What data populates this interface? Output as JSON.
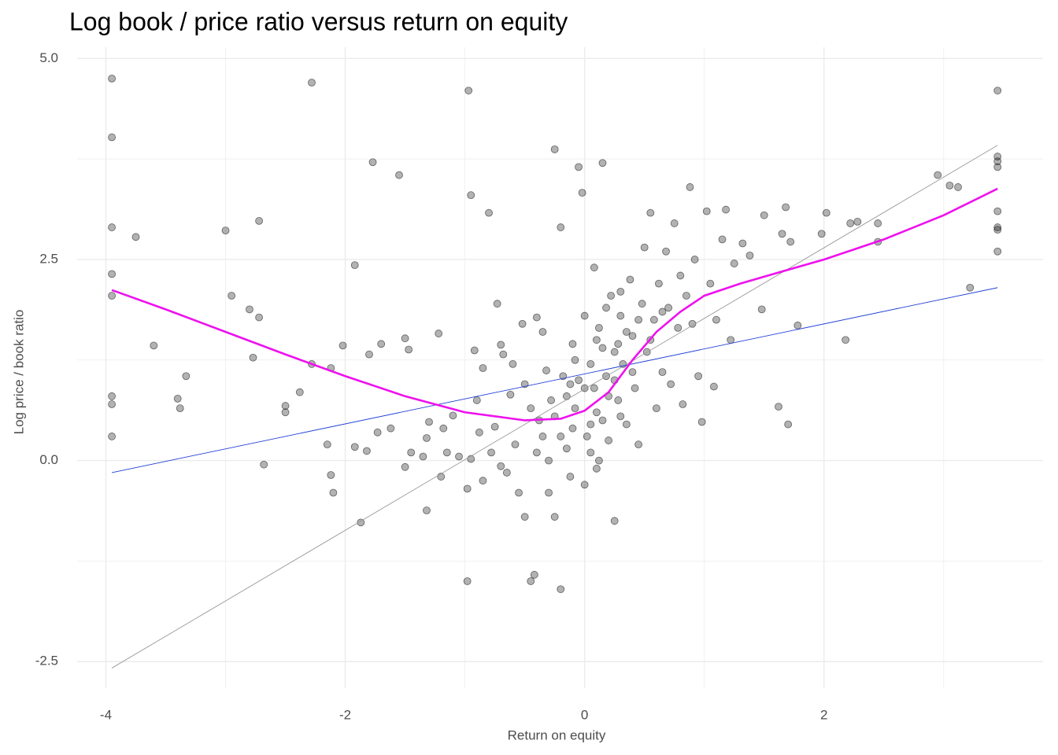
{
  "chart_data": {
    "type": "scatter",
    "title": "Log book / price ratio versus return on equity",
    "x_label": "Return on equity",
    "y_label": "Log price / book ratio",
    "xlim": [
      -4.24,
      3.83
    ],
    "ylim": [
      -2.83,
      5.14
    ],
    "xticks": [
      -4,
      -2,
      0,
      2
    ],
    "yticks": [
      {
        "value": -2.5,
        "label": "-2.5"
      },
      {
        "value": 0,
        "label": "0.0"
      },
      {
        "value": 2.5,
        "label": "2.5"
      },
      {
        "value": 5,
        "label": "5.0"
      }
    ],
    "x_minor_grid": [
      -3,
      -1,
      1,
      3
    ],
    "y_minor_grid": [
      -1.25,
      1.25,
      3.75
    ],
    "grid": true,
    "point_color": "#000000",
    "x": [
      -3.95,
      -3.95,
      -3.95,
      -3.95,
      -3.95,
      -3.95,
      -3.95,
      -3.95,
      -3.75,
      -3.6,
      -3.4,
      -3.38,
      -3.33,
      -3.0,
      -2.95,
      -2.8,
      -2.77,
      -2.72,
      -2.72,
      -2.68,
      -2.5,
      -2.5,
      -2.38,
      -2.28,
      -2.28,
      -2.12,
      -2.02,
      -2.15,
      -2.12,
      -2.1,
      -1.92,
      -1.92,
      -1.87,
      -1.82,
      -1.8,
      -1.77,
      -1.73,
      -1.7,
      -1.62,
      -1.55,
      -1.5,
      -1.5,
      -1.47,
      -1.45,
      -1.35,
      -1.3,
      -1.32,
      -1.32,
      -1.22,
      -1.2,
      -1.18,
      -1.15,
      -1.1,
      -1.05,
      -0.98,
      -0.98,
      -0.97,
      -0.95,
      -0.95,
      -0.92,
      -0.9,
      -0.88,
      -0.85,
      -0.85,
      -0.8,
      -0.78,
      -0.75,
      -0.73,
      -0.7,
      -0.7,
      -0.68,
      -0.65,
      -0.62,
      -0.6,
      -0.58,
      -0.55,
      -0.52,
      -0.5,
      -0.5,
      -0.45,
      -0.45,
      -0.42,
      -0.4,
      -0.38,
      -0.35,
      -0.32,
      -0.3,
      -0.28,
      -0.25,
      -0.25,
      -0.2,
      -0.2,
      -0.18,
      -0.15,
      -0.12,
      -0.1,
      -0.08,
      -0.05,
      -0.02,
      0,
      0.02,
      0.05,
      0.08,
      0.1,
      0.12,
      0.15,
      0.15,
      0.18,
      0.2,
      0.22,
      0.25,
      0.25,
      0.28,
      0.3,
      0.32,
      0.35,
      0.38,
      0.4,
      0.42,
      0.45,
      0.48,
      0.5,
      0.52,
      0.55,
      0.58,
      0.6,
      0.62,
      0.65,
      0.68,
      0.7,
      0.72,
      0.75,
      0.78,
      0.8,
      0.82,
      0.85,
      0.88,
      0.9,
      0.92,
      0.95,
      0.98,
      1.02,
      1.05,
      1.08,
      1.1,
      1.15,
      1.18,
      1.22,
      1.25,
      1.32,
      1.38,
      1.48,
      1.5,
      1.62,
      1.65,
      1.68,
      1.7,
      1.72,
      1.78,
      1.98,
      2.02,
      2.18,
      2.22,
      2.28,
      2.45,
      2.45,
      2.95,
      3.05,
      3.12,
      3.22,
      3.45,
      3.45,
      3.45,
      3.45,
      3.45,
      3.45,
      3.45,
      3.45,
      -0.1,
      0,
      0.05,
      0.1,
      -0.05,
      0.15,
      0.2,
      -0.15,
      0.25,
      0.1,
      0.3,
      -0.2,
      0.05,
      0.35,
      0.4,
      -0.3,
      0,
      0.12,
      -0.08,
      0.18,
      0.28,
      0.45,
      0.55,
      0.65,
      -0.35,
      -0.4,
      -0.25,
      0.08,
      0.3,
      -0.12
    ],
    "y": [
      4.75,
      4.02,
      2.9,
      2.32,
      2.05,
      0.8,
      0.7,
      0.3,
      2.78,
      1.43,
      0.77,
      0.65,
      1.05,
      2.86,
      2.05,
      1.88,
      1.28,
      1.78,
      2.98,
      -0.05,
      0.6,
      0.68,
      0.85,
      1.2,
      4.7,
      1.15,
      1.43,
      0.2,
      -0.18,
      -0.4,
      0.17,
      2.43,
      -0.77,
      0.12,
      1.32,
      3.71,
      0.35,
      1.45,
      0.4,
      3.55,
      1.52,
      -0.08,
      1.38,
      0.1,
      0.05,
      0.48,
      0.28,
      -0.62,
      1.58,
      -0.2,
      0.4,
      0.1,
      0.56,
      0.05,
      -1.5,
      -0.35,
      4.6,
      3.3,
      0.02,
      1.37,
      0.75,
      0.35,
      -0.25,
      1.15,
      3.08,
      0.1,
      0.42,
      1.95,
      1.44,
      -0.07,
      1.32,
      -0.15,
      0.82,
      1.2,
      0.2,
      -0.4,
      1.7,
      0.95,
      -0.7,
      -1.5,
      0.65,
      -1.42,
      1.78,
      0.5,
      1.6,
      1.12,
      -0.4,
      0.75,
      3.87,
      -0.7,
      2.9,
      -1.6,
      1.05,
      0.15,
      -0.2,
      1.45,
      0.65,
      3.65,
      3.33,
      1.8,
      0.3,
      1.2,
      0.9,
      -0.1,
      1.65,
      0.5,
      3.7,
      1.05,
      0.25,
      2.05,
      -0.75,
      1.35,
      0.75,
      1.8,
      1.2,
      0.45,
      2.25,
      1.55,
      0.9,
      0.2,
      1.95,
      2.65,
      1.35,
      3.08,
      1.75,
      0.65,
      2.2,
      1.1,
      2.6,
      1.9,
      0.95,
      2.95,
      1.65,
      2.3,
      0.7,
      2.05,
      3.4,
      1.7,
      2.5,
      1.05,
      0.48,
      3.1,
      2.2,
      0.92,
      1.75,
      2.75,
      3.12,
      1.5,
      2.45,
      2.7,
      2.55,
      1.88,
      3.05,
      0.67,
      2.82,
      3.15,
      0.45,
      2.72,
      1.68,
      2.82,
      3.08,
      1.5,
      2.95,
      2.97,
      2.95,
      2.72,
      3.55,
      3.42,
      3.4,
      2.15,
      4.6,
      3.78,
      3.72,
      3.65,
      3.1,
      2.9,
      2.87,
      2.6,
      0.4,
      0.9,
      0.1,
      0.6,
      1.0,
      1.4,
      0.8,
      0.8,
      1.0,
      1.5,
      0.55,
      0.3,
      0.45,
      1.6,
      1.1,
      0,
      -0.3,
      0,
      1.25,
      1.9,
      1.45,
      1.75,
      1.5,
      1.85,
      0.3,
      0.1,
      0.55,
      2.4,
      2.1,
      0.95
    ],
    "lines": [
      {
        "color": "#9a9a9a",
        "x": [
          -3.95,
          3.45
        ],
        "y": [
          -2.58,
          3.92
        ]
      },
      {
        "color": "#1f3fd6",
        "x": [
          -3.95,
          3.45
        ],
        "y": [
          -0.15,
          2.15
        ]
      },
      {
        "color": "#ee11ee",
        "x": [
          -3.95,
          -3.5,
          -3,
          -2.5,
          -2,
          -1.5,
          -1,
          -0.5,
          -0.2,
          0,
          0.2,
          0.4,
          0.6,
          0.8,
          1,
          1.3,
          1.6,
          2,
          2.5,
          3,
          3.45
        ],
        "y": [
          2.12,
          1.88,
          1.6,
          1.32,
          1.05,
          0.8,
          0.6,
          0.5,
          0.52,
          0.62,
          0.85,
          1.25,
          1.6,
          1.85,
          2.05,
          2.2,
          2.33,
          2.5,
          2.75,
          3.05,
          3.38
        ]
      }
    ]
  }
}
